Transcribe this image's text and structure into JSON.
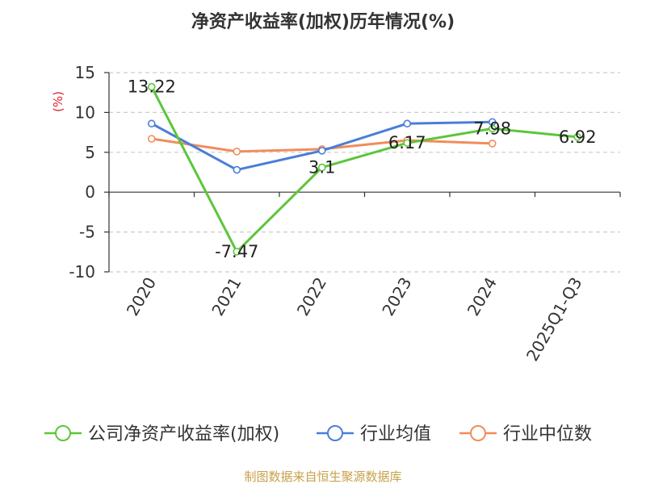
{
  "chart_data": {
    "type": "line",
    "title": "净资产收益率(加权)历年情况(%)",
    "ylabel": "(%)",
    "categories": [
      "2020",
      "2021",
      "2022",
      "2023",
      "2024",
      "2025Q1-Q3"
    ],
    "ylim": [
      -10,
      15
    ],
    "yticks": [
      15,
      10,
      5,
      0,
      -5,
      -10
    ],
    "grid": true,
    "legend_position": "bottom",
    "series": [
      {
        "name": "公司净资产收益率(加权)",
        "color": "#5cc63a",
        "values": [
          13.22,
          -7.47,
          3.1,
          6.17,
          7.98,
          6.92
        ],
        "labels": [
          "13.22",
          "-7.47",
          "3.1",
          "6.17",
          "7.98",
          "6.92"
        ]
      },
      {
        "name": "行业均值",
        "color": "#4a7ed8",
        "values": [
          8.6,
          2.8,
          5.2,
          8.6,
          8.8,
          null
        ]
      },
      {
        "name": "行业中位数",
        "color": "#f28c5a",
        "values": [
          6.7,
          5.1,
          5.4,
          6.5,
          6.1,
          null
        ]
      }
    ]
  },
  "footer": {
    "source": "制图数据来自恒生聚源数据库"
  }
}
